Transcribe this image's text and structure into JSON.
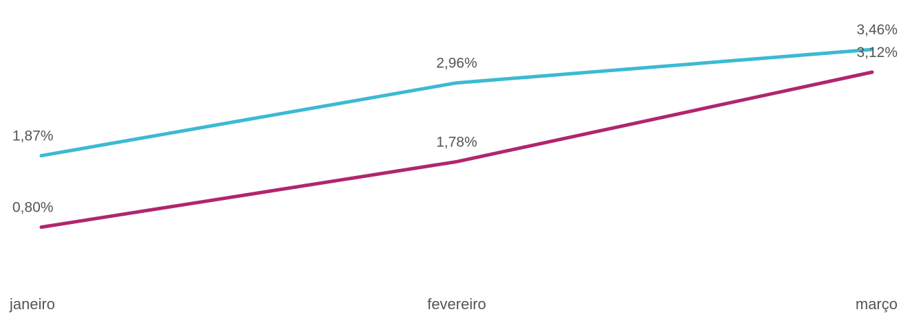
{
  "chart_data": {
    "type": "line",
    "categories": [
      "janeiro",
      "fevereiro",
      "março"
    ],
    "series": [
      {
        "values": [
          1.87,
          2.96,
          3.46
        ],
        "labels": [
          "1,87%",
          "2,96%",
          "3,46%"
        ],
        "color": "#3bbad3"
      },
      {
        "values": [
          0.8,
          1.78,
          3.12
        ],
        "labels": [
          "0,80%",
          "1,78%",
          "3,12%"
        ],
        "color": "#b0266e"
      }
    ],
    "title": "",
    "xlabel": "",
    "ylabel": "",
    "ylim": [
      -0.5,
      4.2
    ],
    "grid": false,
    "legend": "none"
  }
}
